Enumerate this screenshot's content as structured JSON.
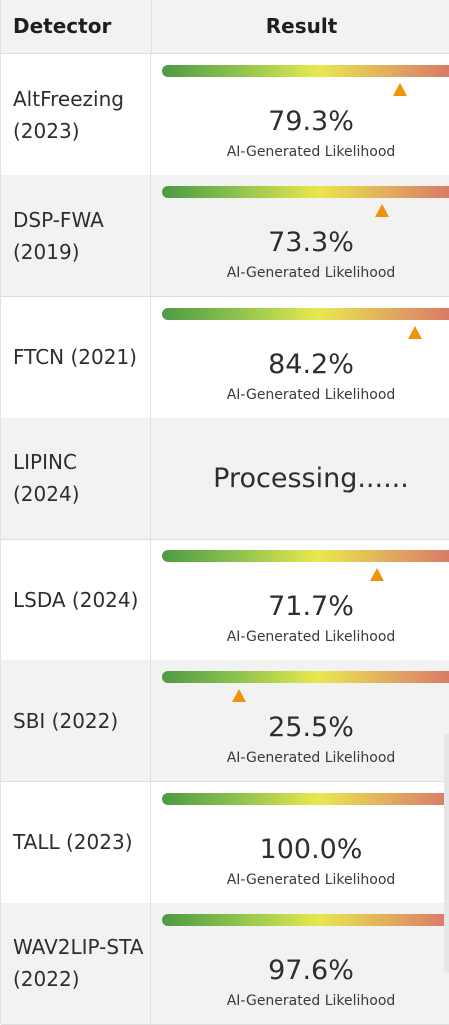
{
  "table": {
    "headers": {
      "detector": "Detector",
      "result": "Result"
    },
    "caption": "AI-Generated Likelihood",
    "rows": [
      {
        "name": "AltFreezing (2023)",
        "value": 79.3,
        "display": "79.3%"
      },
      {
        "name": "DSP-FWA (2019)",
        "value": 73.3,
        "display": "73.3%"
      },
      {
        "name": "FTCN (2021)",
        "value": 84.2,
        "display": "84.2%"
      },
      {
        "name": "LIPINC (2024)",
        "processing": "Processing......"
      },
      {
        "name": "LSDA (2024)",
        "value": 71.7,
        "display": "71.7%"
      },
      {
        "name": "SBI (2022)",
        "value": 25.5,
        "display": "25.5%"
      },
      {
        "name": "TALL (2023)",
        "value": 100.0,
        "display": "100.0%"
      },
      {
        "name": "WAV2LIP-STA (2022)",
        "value": 97.6,
        "display": "97.6%"
      }
    ]
  },
  "colors": {
    "header_bg": "#f2f2f2",
    "alt_row_bg": "#f2f2f2",
    "marker": "#f0920a",
    "gradient": [
      "#4e9a45",
      "#8cc24e",
      "#e8e84e",
      "#e0a660",
      "#d9706a"
    ]
  }
}
